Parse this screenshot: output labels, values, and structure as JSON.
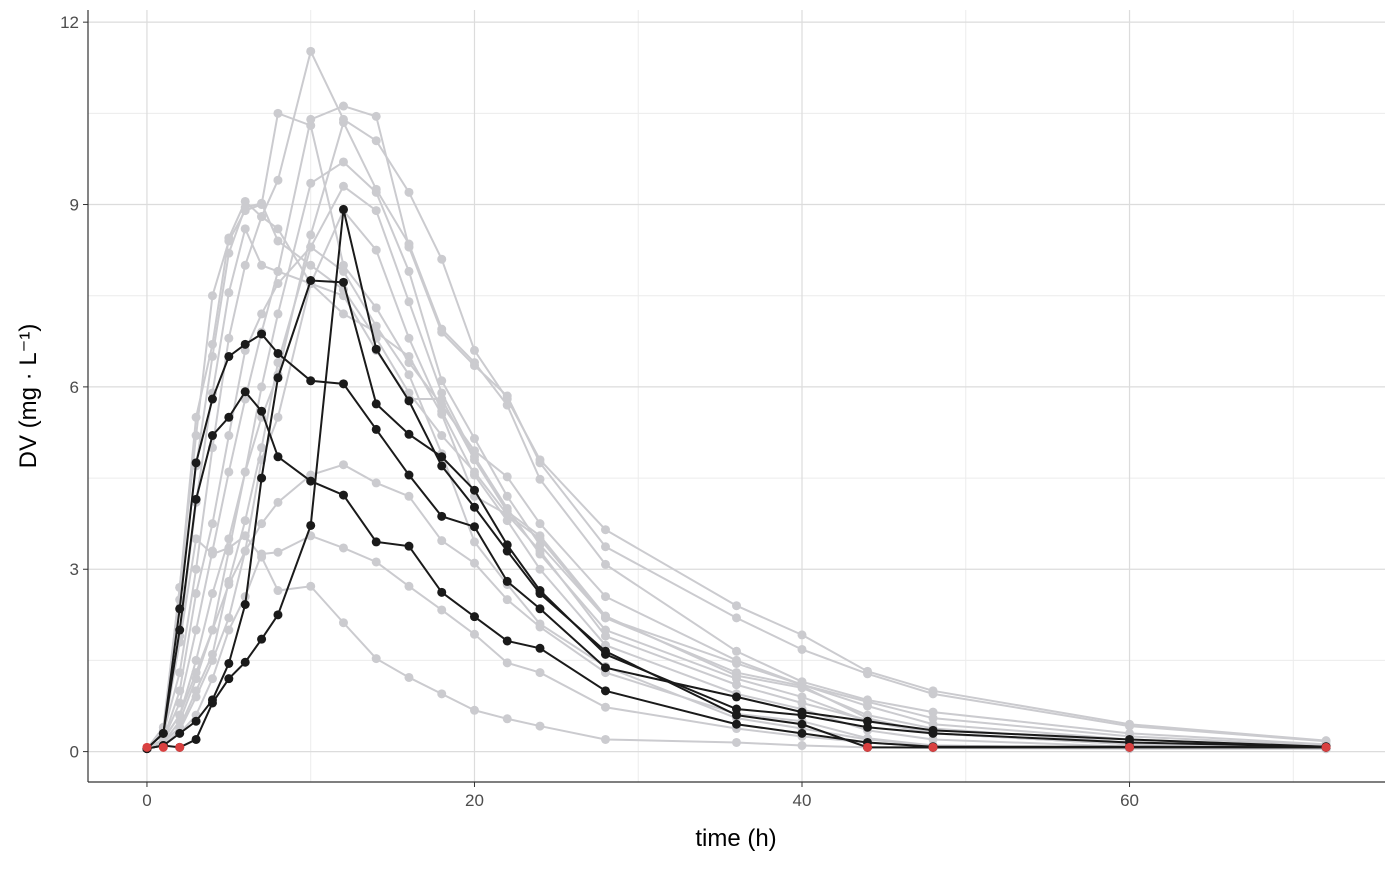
{
  "chart_data": {
    "type": "line",
    "xlabel": "time (h)",
    "ylabel": "DV (mg · L⁻¹)",
    "xlim": [
      -3.6,
      75.6
    ],
    "ylim": [
      -0.5,
      12.2
    ],
    "xticks": [
      0,
      20,
      40,
      60
    ],
    "yticks": [
      0,
      3,
      6,
      9,
      12
    ],
    "grid": true,
    "colors": {
      "highlight": "#1a1a1a",
      "background_series": "#cbcbcf",
      "blq": "#d94040",
      "grid": "#dcdcdc"
    },
    "x": [
      0,
      1,
      2,
      3,
      4,
      5,
      6,
      7,
      8,
      10,
      12,
      14,
      16,
      18,
      20,
      22,
      24,
      28,
      36,
      40,
      44,
      48,
      60,
      72
    ],
    "background_series": [
      [
        0.05,
        0.3,
        1.3,
        3.0,
        5.0,
        6.8,
        8.0,
        8.8,
        9.4,
        11.52,
        10.4,
        10.05,
        9.2,
        8.1,
        6.6,
        5.8,
        4.8,
        3.65,
        2.4,
        1.92,
        1.32,
        1.0,
        0.45,
        0.18
      ],
      [
        0.05,
        0.2,
        0.8,
        2.0,
        3.3,
        4.6,
        5.8,
        6.9,
        7.9,
        10.4,
        10.62,
        10.45,
        8.3,
        6.9,
        6.35,
        5.85,
        4.75,
        3.37,
        2.2,
        1.68,
        1.28,
        0.95,
        0.42,
        0.17
      ],
      [
        0.05,
        0.2,
        0.6,
        1.5,
        2.6,
        3.5,
        4.6,
        5.5,
        6.2,
        8.5,
        10.35,
        9.25,
        8.35,
        6.95,
        6.4,
        5.7,
        4.48,
        3.08,
        1.65,
        1.15,
        0.85,
        0.65,
        0.3,
        0.12
      ],
      [
        0.05,
        0.4,
        2.7,
        5.2,
        7.5,
        8.4,
        8.9,
        9.0,
        10.5,
        10.3,
        8.0,
        7.3,
        6.4,
        5.7,
        4.95,
        4.52,
        3.75,
        2.55,
        1.5,
        1.1,
        0.82,
        0.55,
        0.25,
        0.1
      ],
      [
        0.05,
        0.35,
        2.7,
        5.5,
        6.7,
        8.45,
        9.05,
        8.8,
        8.6,
        7.7,
        7.5,
        6.6,
        5.8,
        5.8,
        4.8,
        3.95,
        3.55,
        2.23,
        1.25,
        1.05,
        0.6,
        0.38,
        0.15,
        0.06
      ],
      [
        0.05,
        0.3,
        2.5,
        4.7,
        6.5,
        8.2,
        8.95,
        9.02,
        8.4,
        8.0,
        7.6,
        6.8,
        5.9,
        5.2,
        4.6,
        3.9,
        3.5,
        2.2,
        1.3,
        1.08,
        0.55,
        0.3,
        0.12,
        0.05
      ],
      [
        0.05,
        0.3,
        1.9,
        4.1,
        5.9,
        7.55,
        8.6,
        8.0,
        7.9,
        7.7,
        7.2,
        6.9,
        6.5,
        5.55,
        4.2,
        3.9,
        3.3,
        1.9,
        1.1,
        0.8,
        0.52,
        0.3,
        0.12,
        0.05
      ],
      [
        0.05,
        0.15,
        0.5,
        1.2,
        2.0,
        3.3,
        4.6,
        6.0,
        7.2,
        9.35,
        9.7,
        9.2,
        7.9,
        6.1,
        5.15,
        4.2,
        3.4,
        2.2,
        1.45,
        1.1,
        0.75,
        0.45,
        0.2,
        0.08
      ],
      [
        0.05,
        0.15,
        0.4,
        1.0,
        1.6,
        2.8,
        3.8,
        5.0,
        6.4,
        8.3,
        9.3,
        8.9,
        7.4,
        5.9,
        4.85,
        4.0,
        3.25,
        2.0,
        1.2,
        0.9,
        0.5,
        0.3,
        0.12,
        0.05
      ],
      [
        0.05,
        0.1,
        0.35,
        0.9,
        1.5,
        2.2,
        3.3,
        4.8,
        5.5,
        7.7,
        8.9,
        8.25,
        6.8,
        5.6,
        4.55,
        3.8,
        3.0,
        1.75,
        0.95,
        0.7,
        0.35,
        0.2,
        0.08,
        0.05
      ],
      [
        0.05,
        0.2,
        1.0,
        2.6,
        3.75,
        5.2,
        6.6,
        7.2,
        7.7,
        8.3,
        7.9,
        7.0,
        6.2,
        4.9,
        3.45,
        2.75,
        2.1,
        1.4,
        0.55,
        0.38,
        0.2,
        0.1,
        0.06,
        0.05
      ],
      [
        0.05,
        0.2,
        0.6,
        1.3,
        2.0,
        2.75,
        3.3,
        3.75,
        4.1,
        4.55,
        4.72,
        4.42,
        4.2,
        3.47,
        3.1,
        2.5,
        2.05,
        1.3,
        0.62,
        0.5,
        0.22,
        0.1,
        0.06,
        0.05
      ],
      [
        0.05,
        0.1,
        0.3,
        0.6,
        1.2,
        2.0,
        2.55,
        3.25,
        3.28,
        3.55,
        3.35,
        3.12,
        2.72,
        2.33,
        1.93,
        1.46,
        1.3,
        0.73,
        0.38,
        0.25,
        0.15,
        0.08,
        0.05,
        0.05
      ],
      [
        0.05,
        0.3,
        1.8,
        3.5,
        3.25,
        3.35,
        3.55,
        3.2,
        2.65,
        2.72,
        2.12,
        1.53,
        1.22,
        0.95,
        0.68,
        0.54,
        0.42,
        0.2,
        0.15,
        0.1,
        0.07,
        0.06,
        0.05,
        0.05
      ]
    ],
    "highlight_series": [
      [
        0.05,
        0.3,
        2.35,
        4.75,
        5.8,
        6.5,
        6.7,
        6.87,
        6.55,
        6.1,
        6.05,
        5.3,
        4.55,
        3.87,
        3.7,
        2.8,
        2.35,
        1.38,
        0.9,
        0.65,
        0.5,
        0.35,
        0.2,
        0.08
      ],
      [
        0.05,
        0.3,
        2.0,
        4.15,
        5.2,
        5.5,
        5.92,
        5.6,
        4.85,
        4.45,
        4.22,
        3.45,
        3.38,
        2.62,
        2.22,
        1.82,
        1.7,
        1.0,
        0.45,
        0.3,
        0.15,
        0.08,
        0.08,
        0.07
      ],
      [
        0.05,
        0.1,
        0.3,
        0.5,
        0.85,
        1.45,
        2.42,
        4.5,
        6.15,
        7.75,
        7.72,
        5.72,
        5.22,
        4.85,
        4.3,
        3.4,
        2.65,
        1.6,
        0.7,
        0.6,
        0.4,
        0.3,
        0.15,
        0.08
      ],
      [
        0.05,
        0.1,
        0.07,
        0.2,
        0.8,
        1.2,
        1.47,
        1.85,
        2.25,
        3.72,
        8.92,
        6.62,
        5.77,
        4.7,
        4.02,
        3.3,
        2.6,
        1.65,
        0.6,
        0.45,
        0.07,
        0.07,
        0.07,
        0.07
      ]
    ],
    "blq_points": [
      [
        0,
        0.07
      ],
      [
        1,
        0.07
      ],
      [
        2,
        0.07
      ],
      [
        44,
        0.07
      ],
      [
        48,
        0.07
      ],
      [
        60,
        0.07
      ],
      [
        72,
        0.07
      ]
    ]
  }
}
